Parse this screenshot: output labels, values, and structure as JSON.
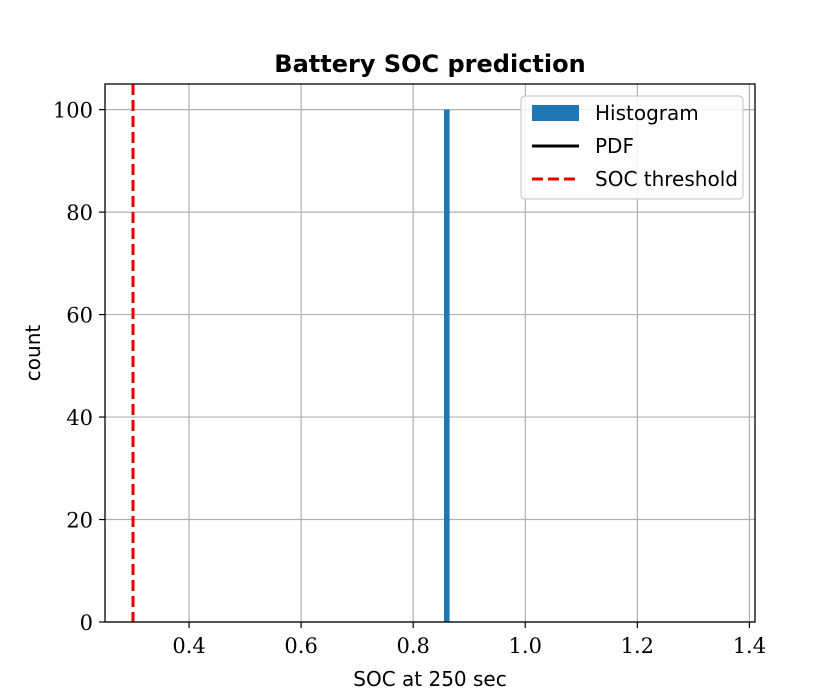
{
  "chart_data": {
    "type": "bar",
    "title": "Battery SOC prediction",
    "xlabel": "SOC at 250 sec",
    "ylabel": "count",
    "xlim": [
      0.25,
      1.41
    ],
    "ylim": [
      0,
      105
    ],
    "xticks": [
      0.4,
      0.6,
      0.8,
      1.0,
      1.2,
      1.4
    ],
    "xtick_labels": [
      "0.4",
      "0.6",
      "0.8",
      "1.0",
      "1.2",
      "1.4"
    ],
    "yticks": [
      0,
      20,
      40,
      60,
      80,
      100
    ],
    "ytick_labels": [
      "0",
      "20",
      "40",
      "60",
      "80",
      "100"
    ],
    "grid": true,
    "legend_position": "top-right",
    "series": [
      {
        "name": "Histogram",
        "kind": "histogram",
        "color": "#1f77b4",
        "bins": [
          {
            "x0": 0.855,
            "x1": 0.865,
            "count": 100
          }
        ]
      },
      {
        "name": "PDF",
        "kind": "line",
        "color": "#000000",
        "points": []
      },
      {
        "name": "SOC threshold",
        "kind": "vline",
        "color": "#e60000",
        "style": "dashed",
        "x": 0.3
      }
    ]
  }
}
